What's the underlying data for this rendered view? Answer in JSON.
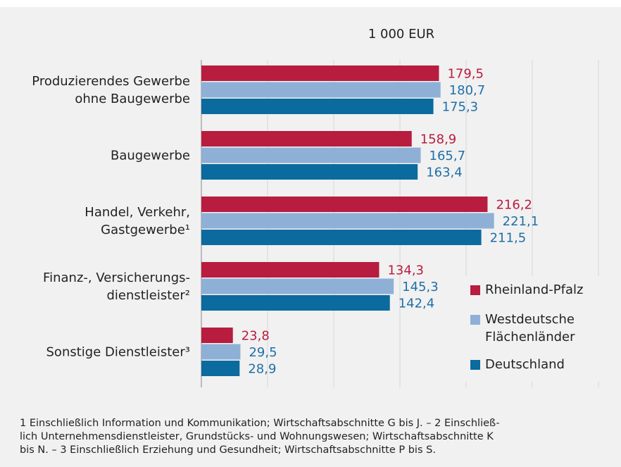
{
  "chart_data": {
    "type": "bar",
    "orientation": "horizontal",
    "unit_label": "1 000 EUR",
    "categories": [
      "Produzierendes Gewerbe\nohne Baugewerbe",
      "Baugewerbe",
      "Handel, Verkehr,\nGastgewerbe¹",
      "Finanz-, Versicherungs-\ndienstleister²",
      "Sonstige Dienstleister³"
    ],
    "series": [
      {
        "name": "Rheinland-Pfalz",
        "color": "#b81c3e",
        "label_color": "#b81c3e",
        "values": [
          179.5,
          158.9,
          216.2,
          134.3,
          23.8
        ],
        "value_labels": [
          "179,5",
          "158,9",
          "216,2",
          "134,3",
          "23,8"
        ]
      },
      {
        "name": "Westdeutsche\nFlächenländer",
        "color": "#8fb0d6",
        "label_color": "#1f6fa8",
        "values": [
          180.7,
          165.7,
          221.1,
          145.3,
          29.5
        ],
        "value_labels": [
          "180,7",
          "165,7",
          "221,1",
          "145,3",
          "29,5"
        ]
      },
      {
        "name": "Deutschland",
        "color": "#0b6b9e",
        "label_color": "#1f6fa8",
        "values": [
          175.3,
          163.4,
          211.5,
          142.4,
          28.9
        ],
        "value_labels": [
          "175,3",
          "163,4",
          "211,5",
          "142,4",
          "28,9"
        ]
      }
    ],
    "xlim": [
      0,
      300
    ],
    "xticks": [
      0,
      50,
      100,
      150,
      200,
      250,
      300
    ],
    "grid": true,
    "legend": "right",
    "footnote": "1 Einschließlich Information und Kommunikation; Wirtschaftsabschnitte G bis J. – 2 Einschließ-\nlich Unternehmensdienstleister, Grundstücks- und Wohnungswesen; Wirtschaftsabschnitte K\nbis N. – 3 Einschließlich Erziehung und Gesundheit; Wirtschaftsabschnitte P bis S."
  }
}
